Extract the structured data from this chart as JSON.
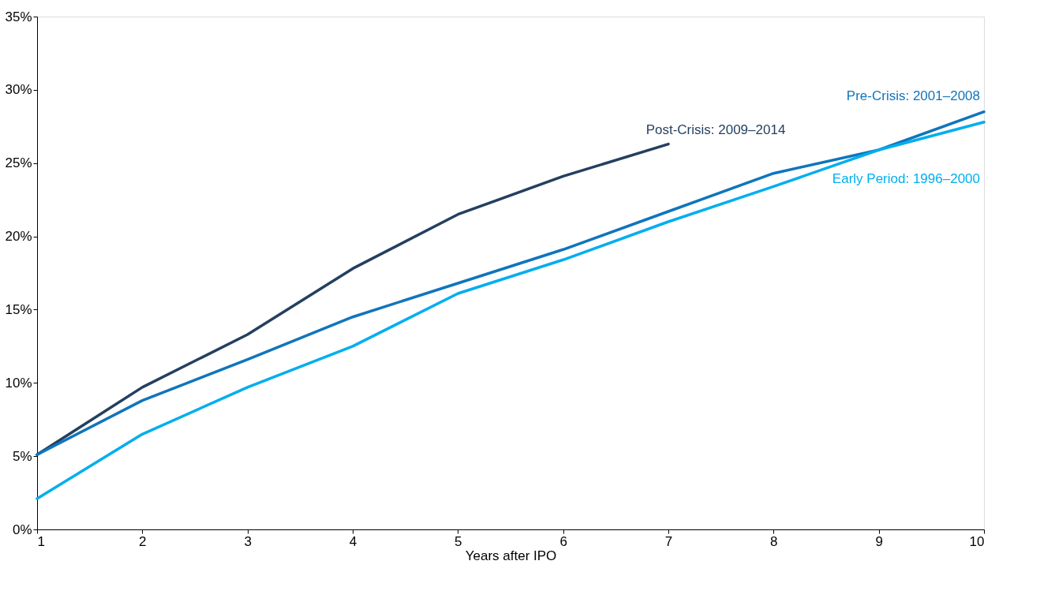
{
  "chart_data": {
    "type": "line",
    "xlabel": "Years after IPO",
    "x": [
      1,
      2,
      3,
      4,
      5,
      6,
      7,
      8,
      9,
      10
    ],
    "series": [
      {
        "name": "Post-Crisis: 2009–2014",
        "color": "#243f60",
        "values": [
          5.1,
          9.7,
          13.3,
          17.8,
          21.5,
          24.1,
          26.3,
          null,
          null,
          null
        ]
      },
      {
        "name": "Pre-Crisis: 2001–2008",
        "color": "#0f75bc",
        "values": [
          5.1,
          8.8,
          11.6,
          14.5,
          16.8,
          19.1,
          21.7,
          24.3,
          25.9,
          28.5
        ]
      },
      {
        "name": "Early Period: 1996–2000",
        "color": "#00aeef",
        "values": [
          2.1,
          6.5,
          9.7,
          12.5,
          16.1,
          18.4,
          21.0,
          23.4,
          25.9,
          27.8
        ]
      }
    ],
    "xlim": [
      1,
      10
    ],
    "xticks": [
      1,
      2,
      3,
      4,
      5,
      6,
      7,
      8,
      9,
      10
    ],
    "ylim": [
      0,
      35
    ],
    "yticks": [
      {
        "value": 0,
        "label": "0%"
      },
      {
        "value": 5,
        "label": "5%"
      },
      {
        "value": 10,
        "label": "10%"
      },
      {
        "value": 15,
        "label": "15%"
      },
      {
        "value": 20,
        "label": "20%"
      },
      {
        "value": 25,
        "label": "25%"
      },
      {
        "value": 30,
        "label": "30%"
      },
      {
        "value": 35,
        "label": "35%"
      }
    ],
    "grid": false,
    "marker": "none",
    "line_style": "solid"
  }
}
